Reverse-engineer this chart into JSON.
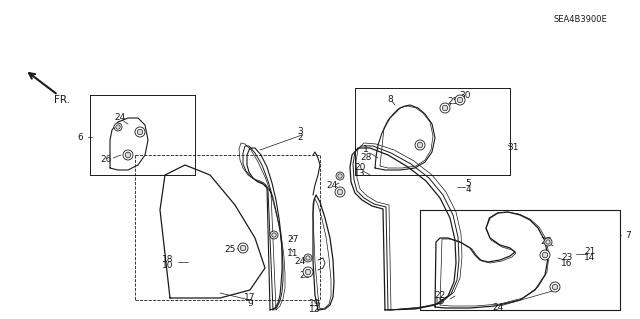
{
  "bg_color": "#ffffff",
  "line_color": "#1a1a1a",
  "diagram_code": "SEA4B3900E",
  "fig_w": 6.4,
  "fig_h": 3.19,
  "dpi": 100
}
